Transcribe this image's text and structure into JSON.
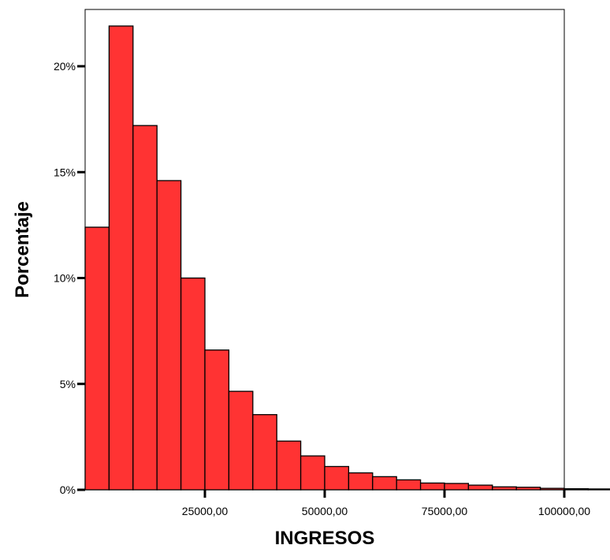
{
  "chart_data": {
    "type": "bar",
    "subtype": "histogram",
    "title": "",
    "xlabel": "INGRESOS",
    "ylabel": "Porcentaje",
    "bin_width": 5000,
    "x_start": 0,
    "xlim": [
      0,
      100000
    ],
    "ylim": [
      0,
      22
    ],
    "xticks": [
      {
        "value": 25000,
        "label": "25000,00"
      },
      {
        "value": 50000,
        "label": "50000,00"
      },
      {
        "value": 75000,
        "label": "75000,00"
      },
      {
        "value": 100000,
        "label": "100000,00"
      }
    ],
    "yticks": [
      {
        "value": 0,
        "label": "0%"
      },
      {
        "value": 5,
        "label": "5%"
      },
      {
        "value": 10,
        "label": "10%"
      },
      {
        "value": 15,
        "label": "15%"
      },
      {
        "value": 20,
        "label": "20%"
      }
    ],
    "values": [
      12.4,
      21.9,
      17.2,
      14.6,
      10.0,
      6.6,
      4.65,
      3.55,
      2.3,
      1.6,
      1.1,
      0.8,
      0.62,
      0.47,
      0.32,
      0.3,
      0.22,
      0.14,
      0.12,
      0.07,
      0.05,
      0.04
    ],
    "grid": false,
    "colors": {
      "bar_fill": "#ff3333",
      "bar_stroke": "#000000",
      "frame": "#000000"
    }
  }
}
